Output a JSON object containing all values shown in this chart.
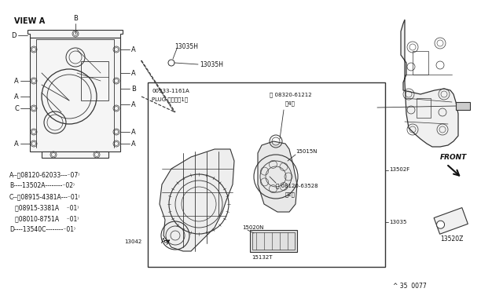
{
  "bg_color": "#ffffff",
  "line_color": "#333333",
  "text_color": "#111111",
  "ref_number": "^ 35  0077",
  "view_label": "VIEW A",
  "fig_width": 6.4,
  "fig_height": 3.72,
  "dpi": 100,
  "parts_list_lines": [
    "A--Ⓑ08120-62033---⁻07⁾",
    "B----13502A--------⁻02⁾",
    "C--Ⓦ08915-4381A---⁻01⁾",
    "   Ⓦ08915-3381A    ⁻01⁾",
    "   Ⓑ08010-8751A    ⁻01⁾",
    "D----13540C--------⁻01⁾"
  ]
}
